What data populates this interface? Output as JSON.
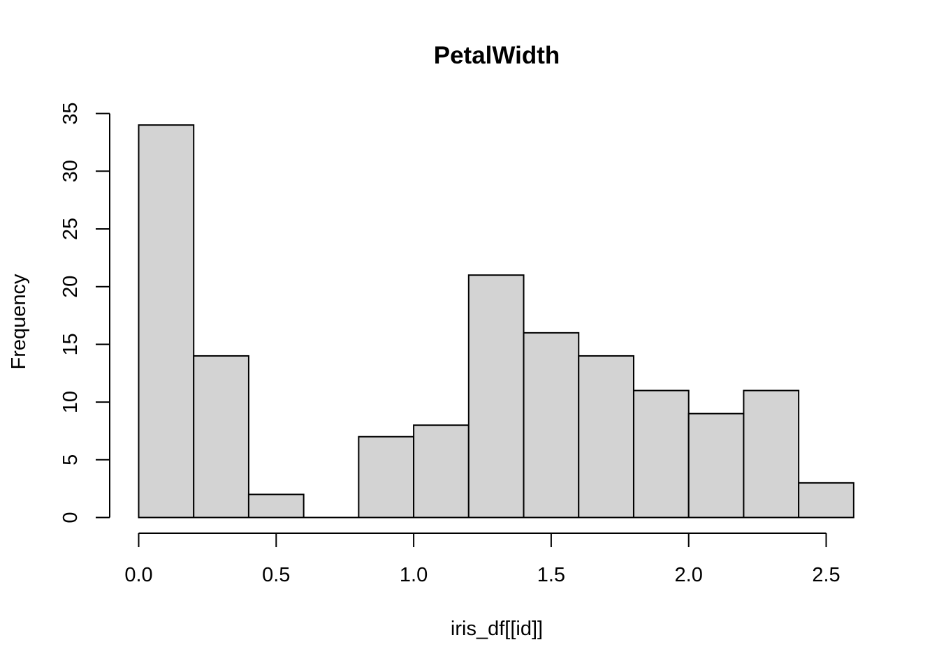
{
  "chart_data": {
    "type": "bar",
    "title": "PetalWidth",
    "xlabel": "iris_df[[id]]",
    "ylabel": "Frequency",
    "bins": [
      {
        "x0": 0.0,
        "x1": 0.2,
        "count": 34
      },
      {
        "x0": 0.2,
        "x1": 0.4,
        "count": 14
      },
      {
        "x0": 0.4,
        "x1": 0.6,
        "count": 2
      },
      {
        "x0": 0.6,
        "x1": 0.8,
        "count": 0
      },
      {
        "x0": 0.8,
        "x1": 1.0,
        "count": 7
      },
      {
        "x0": 1.0,
        "x1": 1.2,
        "count": 8
      },
      {
        "x0": 1.2,
        "x1": 1.4,
        "count": 21
      },
      {
        "x0": 1.4,
        "x1": 1.6,
        "count": 16
      },
      {
        "x0": 1.6,
        "x1": 1.8,
        "count": 14
      },
      {
        "x0": 1.8,
        "x1": 2.0,
        "count": 11
      },
      {
        "x0": 2.0,
        "x1": 2.2,
        "count": 9
      },
      {
        "x0": 2.2,
        "x1": 2.4,
        "count": 11
      },
      {
        "x0": 2.4,
        "x1": 2.6,
        "count": 3
      }
    ],
    "x_ticks": [
      0.0,
      0.5,
      1.0,
      1.5,
      2.0,
      2.5
    ],
    "x_tick_labels": [
      "0.0",
      "0.5",
      "1.0",
      "1.5",
      "2.0",
      "2.5"
    ],
    "y_ticks": [
      0,
      5,
      10,
      15,
      20,
      25,
      30,
      35
    ],
    "y_tick_labels": [
      "0",
      "5",
      "10",
      "15",
      "20",
      "25",
      "30",
      "35"
    ],
    "xlim": [
      0.0,
      2.6
    ],
    "ylim": [
      0,
      35
    ],
    "grid": false,
    "bar_color": "#d3d3d3",
    "edge_color": "#000000"
  }
}
